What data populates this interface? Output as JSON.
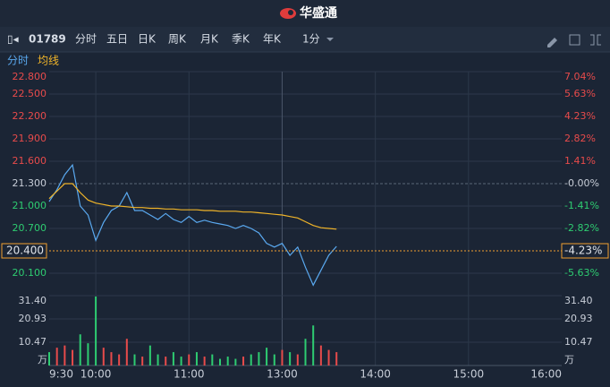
{
  "header": {
    "title": "华盛通"
  },
  "toolbar": {
    "code": "01789",
    "tabs": [
      "分时",
      "五日",
      "日K",
      "周K",
      "月K",
      "季K",
      "年K"
    ],
    "interval": "1分"
  },
  "chart_data": {
    "type": "line",
    "x": [
      0,
      5,
      10,
      15,
      20,
      25,
      30,
      35,
      40,
      45,
      50,
      55,
      60,
      65,
      70,
      75,
      80,
      85,
      90,
      95,
      100,
      105,
      110,
      115,
      120,
      125,
      130,
      135,
      140,
      145,
      150,
      155,
      160,
      165,
      170,
      175,
      180,
      185
    ],
    "xlim": [
      0,
      330
    ],
    "xticks": [
      {
        "value": 0,
        "label": "9:30"
      },
      {
        "value": 30,
        "label": "10:00"
      },
      {
        "value": 90,
        "label": "11:00"
      },
      {
        "value": 150,
        "label": "13:00"
      },
      {
        "value": 210,
        "label": "14:00"
      },
      {
        "value": 270,
        "label": "15:00"
      },
      {
        "value": 330,
        "label": "16:00"
      }
    ],
    "series": [
      {
        "name": "分时",
        "color": "#5aa9f0",
        "values": [
          21.06,
          21.22,
          21.42,
          21.55,
          21.0,
          20.88,
          20.54,
          20.78,
          20.94,
          21.0,
          21.18,
          20.94,
          20.94,
          20.88,
          20.82,
          20.9,
          20.82,
          20.78,
          20.86,
          20.78,
          20.81,
          20.78,
          20.76,
          20.74,
          20.7,
          20.74,
          20.7,
          20.64,
          20.5,
          20.45,
          20.5,
          20.34,
          20.45,
          20.18,
          19.94,
          20.14,
          20.34,
          20.46
        ]
      },
      {
        "name": "均线",
        "color": "#f0b429",
        "values": [
          21.1,
          21.2,
          21.3,
          21.3,
          21.18,
          21.08,
          21.04,
          21.02,
          21.0,
          21.0,
          20.99,
          20.98,
          20.98,
          20.97,
          20.97,
          20.96,
          20.96,
          20.95,
          20.95,
          20.95,
          20.94,
          20.94,
          20.93,
          20.93,
          20.93,
          20.92,
          20.92,
          20.91,
          20.9,
          20.89,
          20.88,
          20.86,
          20.84,
          20.79,
          20.74,
          20.71,
          20.7,
          20.69
        ]
      }
    ],
    "ylim": [
      19.8,
      22.8
    ],
    "yticks": [
      {
        "value": 22.8,
        "label": "22.800"
      },
      {
        "value": 22.5,
        "label": "22.500"
      },
      {
        "value": 22.2,
        "label": "22.200"
      },
      {
        "value": 21.9,
        "label": "21.900"
      },
      {
        "value": 21.6,
        "label": "21.600"
      },
      {
        "value": 21.3,
        "label": "21.300"
      },
      {
        "value": 21.0,
        "label": "21.000"
      },
      {
        "value": 20.7,
        "label": "20.700"
      },
      {
        "value": 20.1,
        "label": "20.100"
      }
    ],
    "y2lim": [
      -7.04,
      7.04
    ],
    "y2ticks": [
      {
        "value": 7.04,
        "label": "7.04%"
      },
      {
        "value": 5.63,
        "label": "5.63%"
      },
      {
        "value": 4.23,
        "label": "4.23%"
      },
      {
        "value": 2.82,
        "label": "2.82%"
      },
      {
        "value": 1.41,
        "label": "1.41%"
      },
      {
        "value": 0,
        "label": "-0.00%"
      },
      {
        "value": -1.41,
        "label": "-1.41%"
      },
      {
        "value": -2.82,
        "label": "-2.82%"
      },
      {
        "value": -5.63,
        "label": "-5.63%"
      }
    ],
    "current": {
      "value": 20.4,
      "label": "20.400",
      "change": -4.23,
      "change_label": "-4.23%"
    },
    "volume": {
      "unit": "万",
      "values": [
        6,
        8,
        9,
        7,
        14,
        10,
        31,
        8,
        6,
        5,
        12,
        5,
        4,
        9,
        5,
        4,
        6,
        4,
        5,
        6,
        4,
        5,
        3,
        4,
        3,
        4,
        5,
        6,
        8,
        5,
        7,
        6,
        5,
        12,
        18,
        9,
        7,
        6
      ],
      "colors": [
        "#2ecc71",
        "#e84b4b",
        "#e84b4b",
        "#e84b4b",
        "#2ecc71",
        "#2ecc71",
        "#2ecc71",
        "#e84b4b",
        "#e84b4b",
        "#e84b4b",
        "#e84b4b",
        "#2ecc71",
        "#e84b4b",
        "#2ecc71",
        "#2ecc71",
        "#e84b4b",
        "#2ecc71",
        "#2ecc71",
        "#e84b4b",
        "#2ecc71",
        "#e84b4b",
        "#2ecc71",
        "#2ecc71",
        "#2ecc71",
        "#2ecc71",
        "#e84b4b",
        "#2ecc71",
        "#2ecc71",
        "#2ecc71",
        "#2ecc71",
        "#e84b4b",
        "#2ecc71",
        "#e84b4b",
        "#2ecc71",
        "#2ecc71",
        "#e84b4b",
        "#e84b4b",
        "#e84b4b"
      ],
      "ylim": [
        0,
        31.4
      ],
      "yticks": [
        {
          "value": 31.4,
          "label": "31.40"
        },
        20.93,
        10.47
      ]
    }
  }
}
